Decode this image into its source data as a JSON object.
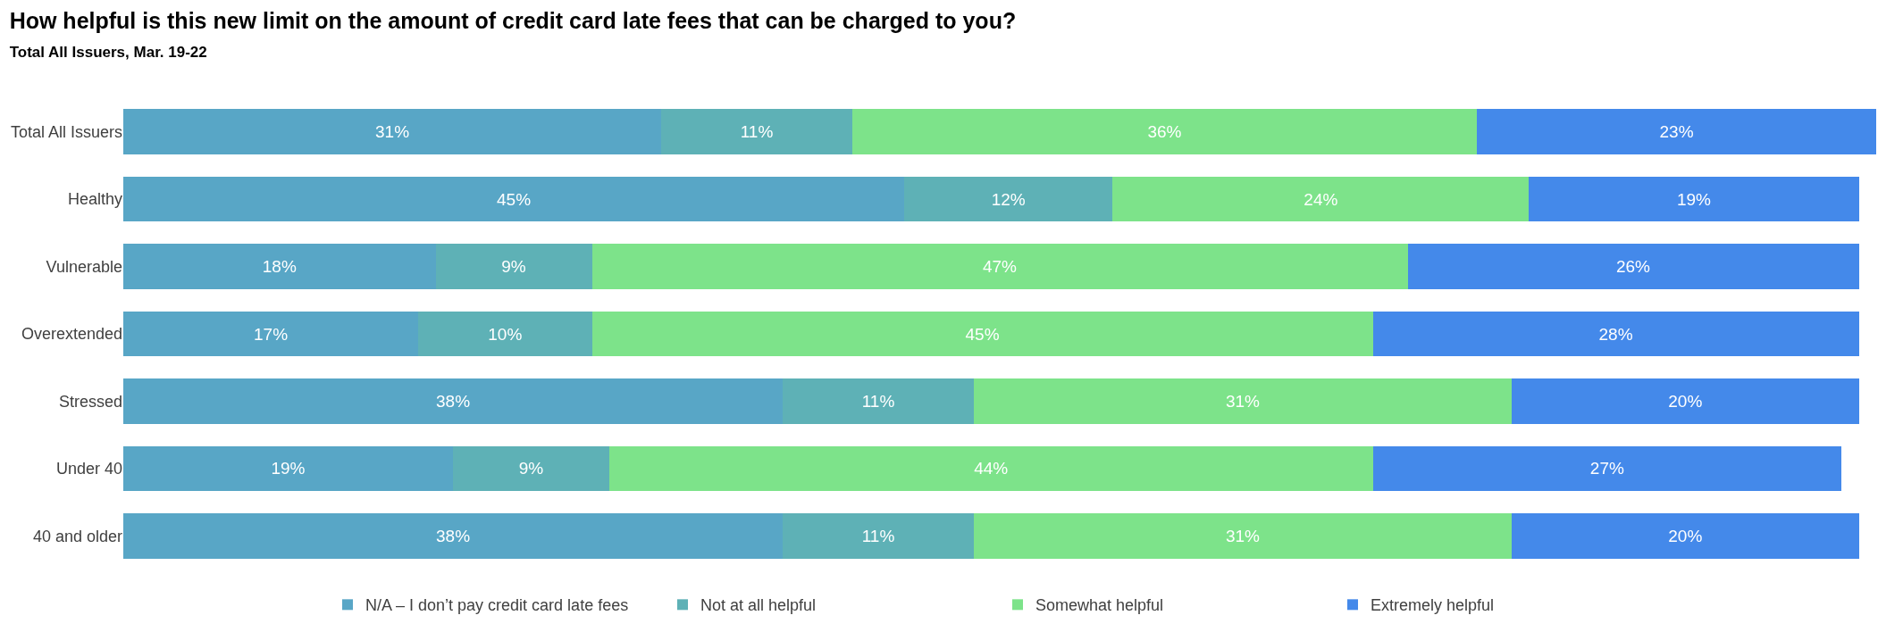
{
  "chart_data": {
    "type": "bar",
    "orientation": "horizontal",
    "stacked": true,
    "legend": "bottom",
    "title": "How helpful is this new limit on the amount of credit card late fees that can be charged to you?",
    "subtitle": "Total All Issuers, Mar. 19-22",
    "categories": [
      "Total All Issuers",
      "Healthy",
      "Vulnerable",
      "Overextended",
      "Stressed",
      "Under 40",
      "40 and older"
    ],
    "series": [
      {
        "name": "N/A – I don’t pay credit card late fees",
        "color": "#58a6c6",
        "values": [
          31,
          45,
          18,
          17,
          38,
          19,
          38
        ],
        "value_labels": [
          "31%",
          "45%",
          "18%",
          "17%",
          "38%",
          "19%",
          "38%"
        ]
      },
      {
        "name": "Not at all helpful",
        "color": "#5eb1b6",
        "values": [
          11,
          12,
          9,
          10,
          11,
          9,
          11
        ],
        "value_labels": [
          "11%",
          "12%",
          "9%",
          "10%",
          "11%",
          "9%",
          "11%"
        ]
      },
      {
        "name": "Somewhat helpful",
        "color": "#7de38a",
        "values": [
          36,
          24,
          47,
          45,
          31,
          44,
          31
        ],
        "value_labels": [
          "36%",
          "24%",
          "47%",
          "45%",
          "31%",
          "44%",
          "31%"
        ]
      },
      {
        "name": "Extremely helpful",
        "color": "#4489ea",
        "values": [
          23,
          19,
          26,
          28,
          20,
          27,
          20
        ],
        "value_labels": [
          "23%",
          "19%",
          "26%",
          "28%",
          "20%",
          "27%",
          "20%"
        ]
      }
    ]
  }
}
